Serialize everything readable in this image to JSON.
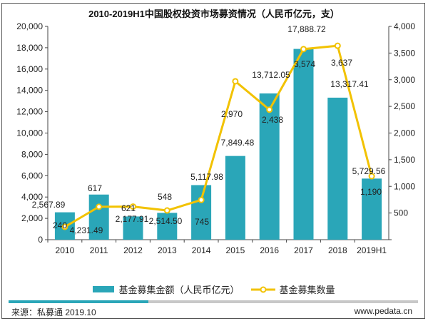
{
  "chart_data": {
    "type": "bar+line",
    "title": "2010-2019H1中国股权投资市场募资情况（人民币亿元，支）",
    "categories": [
      "2010",
      "2011",
      "2012",
      "2013",
      "2014",
      "2015",
      "2016",
      "2017",
      "2018",
      "2019H1"
    ],
    "series": [
      {
        "name": "基金募集金额（人民币亿元）",
        "type": "bar",
        "axis": "left",
        "color": "#2aa6b8",
        "values": [
          2567.89,
          4231.49,
          2177.91,
          2514.5,
          5117.98,
          7849.48,
          13712.05,
          17888.72,
          13317.41,
          5729.56
        ],
        "labels": [
          "2,567.89",
          "4,231.49",
          "2,177.91",
          "2,514.50",
          "5,117.98",
          "7,849.48",
          "13,712.05",
          "17,888.72",
          "13,317.41",
          "5,729.56"
        ]
      },
      {
        "name": "基金募集数量",
        "type": "line",
        "axis": "right",
        "color": "#f2c200",
        "values": [
          240,
          617,
          621,
          548,
          745,
          2970,
          2438,
          3574,
          3637,
          1190
        ],
        "labels": [
          "240",
          "617",
          "621",
          "548",
          "745",
          "2,970",
          "2,438",
          "3,574",
          "3,637",
          "1,190"
        ]
      }
    ],
    "ylim_left": [
      0,
      20000
    ],
    "yticks_left": [
      "0",
      "2,000",
      "4,000",
      "6,000",
      "8,000",
      "10,000",
      "12,000",
      "14,000",
      "16,000",
      "18,000",
      "20,000"
    ],
    "ylim_right": [
      0,
      4000
    ],
    "yticks_right": [
      "",
      "500",
      "1,000",
      "1,500",
      "2,000",
      "2,500",
      "3,000",
      "3,500",
      "4,000"
    ],
    "grid": false,
    "legend": "bottom"
  },
  "footer": {
    "source": "来源：私募通 2019.10",
    "site": "www.pedata.cn"
  }
}
